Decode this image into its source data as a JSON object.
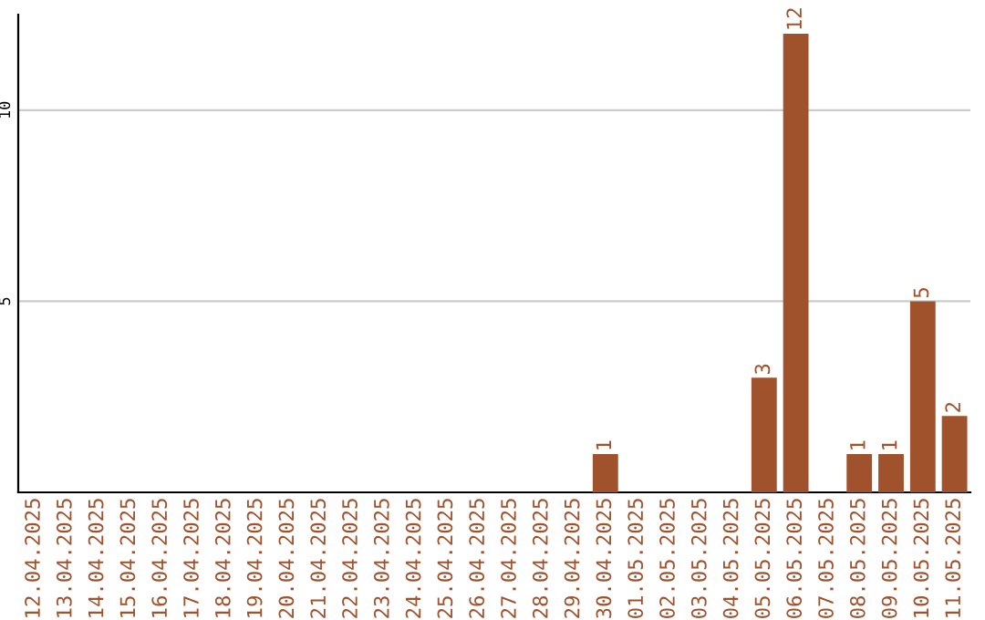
{
  "chart_data": {
    "type": "bar",
    "categories": [
      "12.04.2025",
      "13.04.2025",
      "14.04.2025",
      "15.04.2025",
      "16.04.2025",
      "17.04.2025",
      "18.04.2025",
      "19.04.2025",
      "20.04.2025",
      "21.04.2025",
      "22.04.2025",
      "23.04.2025",
      "24.04.2025",
      "25.04.2025",
      "26.04.2025",
      "27.04.2025",
      "28.04.2025",
      "29.04.2025",
      "30.04.2025",
      "01.05.2025",
      "02.05.2025",
      "03.05.2025",
      "04.05.2025",
      "05.05.2025",
      "06.05.2025",
      "07.05.2025",
      "08.05.2025",
      "09.05.2025",
      "10.05.2025",
      "11.05.2025"
    ],
    "values": [
      0,
      0,
      0,
      0,
      0,
      0,
      0,
      0,
      0,
      0,
      0,
      0,
      0,
      0,
      0,
      0,
      0,
      0,
      1,
      0,
      0,
      0,
      0,
      3,
      12,
      0,
      1,
      1,
      5,
      2
    ],
    "value_labels": [
      null,
      null,
      null,
      null,
      null,
      null,
      null,
      null,
      null,
      null,
      null,
      null,
      null,
      null,
      null,
      null,
      null,
      null,
      "1",
      null,
      null,
      null,
      null,
      "3",
      "12",
      null,
      "1",
      "1",
      "5",
      "2"
    ],
    "color": "#a0522d",
    "ylim": [
      0,
      12.5
    ],
    "yticks": [
      5,
      10
    ],
    "grid": "y"
  }
}
